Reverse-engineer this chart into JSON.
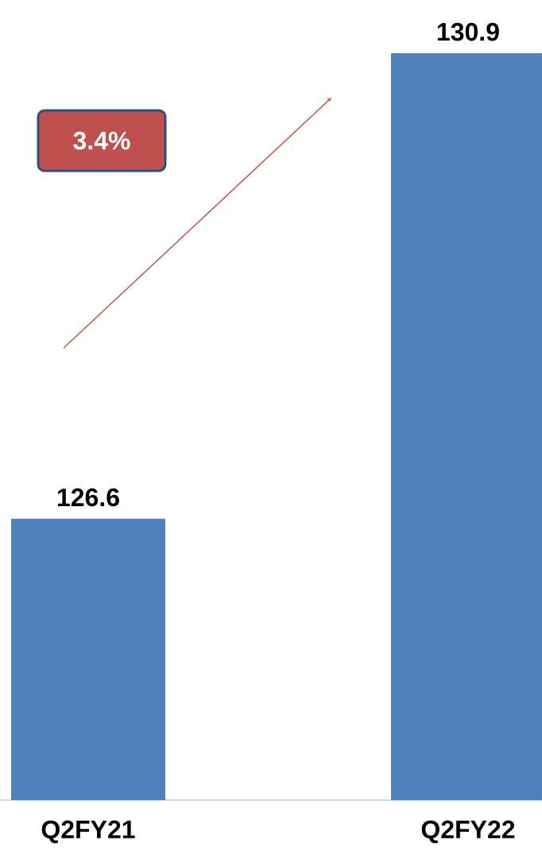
{
  "chart_data": {
    "type": "bar",
    "categories": [
      "Q2FY21",
      "Q2FY22"
    ],
    "values": [
      126.6,
      130.9
    ],
    "color": "#4f81bd",
    "data_labels": true,
    "ylim": [
      124,
      130.9
    ],
    "annotations": [
      "3.4%"
    ]
  }
}
